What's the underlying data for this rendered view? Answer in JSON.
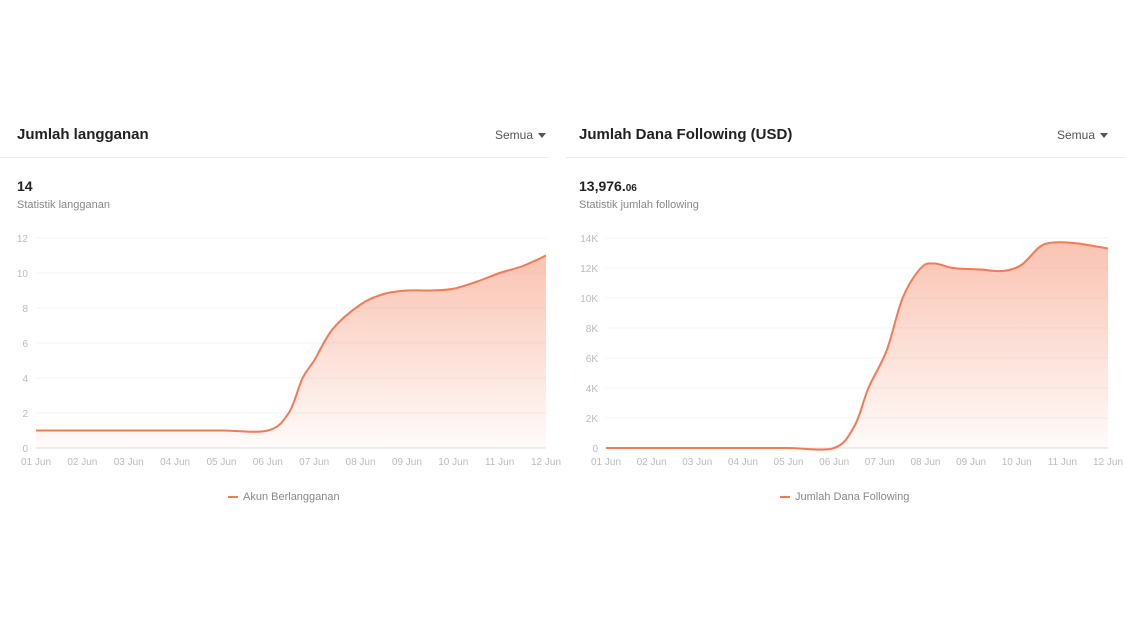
{
  "panels": [
    {
      "title": "Jumlah langganan",
      "filter": "Semua",
      "stat_value": "14",
      "stat_decimal": "",
      "stat_label": "Statistik langganan",
      "legend": "Akun Berlangganan",
      "chart_data": {
        "type": "area",
        "x": [
          "01 Jun",
          "02 Jun",
          "03 Jun",
          "04 Jun",
          "05 Jun",
          "06 Jun",
          "07 Jun",
          "08 Jun",
          "09 Jun",
          "10 Jun",
          "11 Jun",
          "12 Jun"
        ],
        "yticks": [
          "0",
          "2",
          "4",
          "6",
          "8",
          "10",
          "12"
        ],
        "ylim": [
          0,
          12
        ],
        "series": [
          {
            "name": "Akun Berlangganan",
            "points": [
              [
                0,
                1
              ],
              [
                1,
                1
              ],
              [
                2,
                1
              ],
              [
                3,
                1
              ],
              [
                4,
                1
              ],
              [
                5,
                1
              ],
              [
                5.45,
                2
              ],
              [
                5.75,
                4
              ],
              [
                6,
                5
              ],
              [
                6.4,
                6.8
              ],
              [
                7,
                8.2
              ],
              [
                7.5,
                8.8
              ],
              [
                8,
                9
              ],
              [
                8.5,
                9
              ],
              [
                9,
                9.1
              ],
              [
                9.5,
                9.5
              ],
              [
                10,
                10
              ],
              [
                10.5,
                10.4
              ],
              [
                11,
                11
              ]
            ]
          }
        ],
        "color": "#f47a55",
        "grid": true,
        "legend_position": "bottom"
      }
    },
    {
      "title": "Jumlah Dana Following (USD)",
      "filter": "Semua",
      "stat_value": "13,976.",
      "stat_decimal": "06",
      "stat_label": "Statistik jumlah following",
      "legend": "Jumlah Dana Following",
      "chart_data": {
        "type": "area",
        "x": [
          "01 Jun",
          "02 Jun",
          "03 Jun",
          "04 Jun",
          "05 Jun",
          "06 Jun",
          "07 Jun",
          "08 Jun",
          "09 Jun",
          "10 Jun",
          "11 Jun",
          "12 Jun"
        ],
        "yticks": [
          "0",
          "2K",
          "4K",
          "6K",
          "8K",
          "10K",
          "12K",
          "14K"
        ],
        "ylim": [
          0,
          14000
        ],
        "series": [
          {
            "name": "Jumlah Dana Following",
            "points": [
              [
                0,
                0
              ],
              [
                1,
                0
              ],
              [
                2,
                0
              ],
              [
                3,
                0
              ],
              [
                4,
                0
              ],
              [
                5,
                0
              ],
              [
                5.45,
                1500
              ],
              [
                5.75,
                4000
              ],
              [
                6.15,
                6500
              ],
              [
                6.5,
                10000
              ],
              [
                6.9,
                12000
              ],
              [
                7.2,
                12300
              ],
              [
                7.6,
                12000
              ],
              [
                8.2,
                11900
              ],
              [
                8.7,
                11800
              ],
              [
                9.1,
                12200
              ],
              [
                9.5,
                13400
              ],
              [
                9.8,
                13700
              ],
              [
                10.3,
                13650
              ],
              [
                11,
                13300
              ]
            ]
          }
        ],
        "color": "#f47a55",
        "grid": true,
        "legend_position": "bottom"
      }
    }
  ]
}
